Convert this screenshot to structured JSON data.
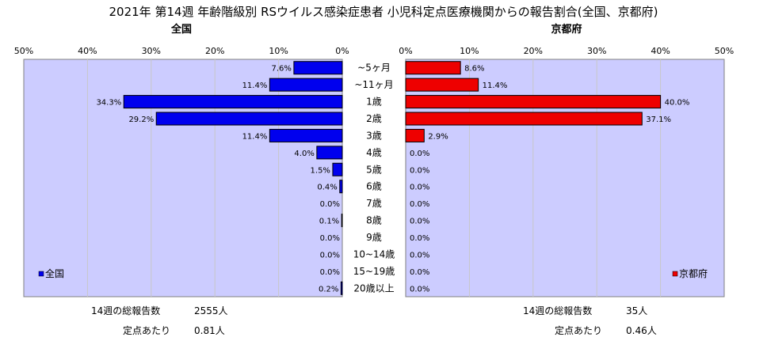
{
  "title": "2021年 第14週 年齢階級別 RSウイルス感染症患者 小児科定点医療機関からの報告割合(全国、京都府)",
  "footer": {
    "left": {
      "total_label": "14週の総報告数",
      "total_value": "2555人",
      "per_label": "定点あたり",
      "per_value": "0.81人"
    },
    "right": {
      "total_label": "14週の総報告数",
      "total_value": "35人",
      "per_label": "定点あたり",
      "per_value": "0.46人"
    }
  },
  "chart_data": {
    "type": "bar",
    "orientation": "horizontal",
    "layout": "back-to-back",
    "categories": [
      "~5ヶ月",
      "~11ヶ月",
      "1歳",
      "2歳",
      "3歳",
      "4歳",
      "5歳",
      "6歳",
      "7歳",
      "8歳",
      "9歳",
      "10~14歳",
      "15~19歳",
      "20歳以上"
    ],
    "xlim": [
      0,
      50
    ],
    "ticks": [
      "0%",
      "10%",
      "20%",
      "30%",
      "40%",
      "50%"
    ],
    "series": [
      {
        "name": "全国",
        "side": "left",
        "color": "#0000ee",
        "plot_bg": "#ccccff",
        "values": [
          7.6,
          11.4,
          34.3,
          29.2,
          11.4,
          4.0,
          1.5,
          0.4,
          0.0,
          0.1,
          0.0,
          0.0,
          0.0,
          0.2
        ],
        "labels": [
          "7.6%",
          "11.4%",
          "34.3%",
          "29.2%",
          "11.4%",
          "4.0%",
          "1.5%",
          "0.4%",
          "0.0%",
          "0.1%",
          "0.0%",
          "0.0%",
          "0.0%",
          "0.2%"
        ]
      },
      {
        "name": "京都府",
        "side": "right",
        "color": "#ee0000",
        "plot_bg": "#ccccff",
        "values": [
          8.6,
          11.4,
          40.0,
          37.1,
          2.9,
          0.0,
          0.0,
          0.0,
          0.0,
          0.0,
          0.0,
          0.0,
          0.0,
          0.0
        ],
        "labels": [
          "8.6%",
          "11.4%",
          "40.0%",
          "37.1%",
          "2.9%",
          "0.0%",
          "0.0%",
          "0.0%",
          "0.0%",
          "0.0%",
          "0.0%",
          "0.0%",
          "0.0%",
          "0.0%"
        ]
      }
    ],
    "grid": true,
    "legend": "bottom-left / bottom-right"
  }
}
